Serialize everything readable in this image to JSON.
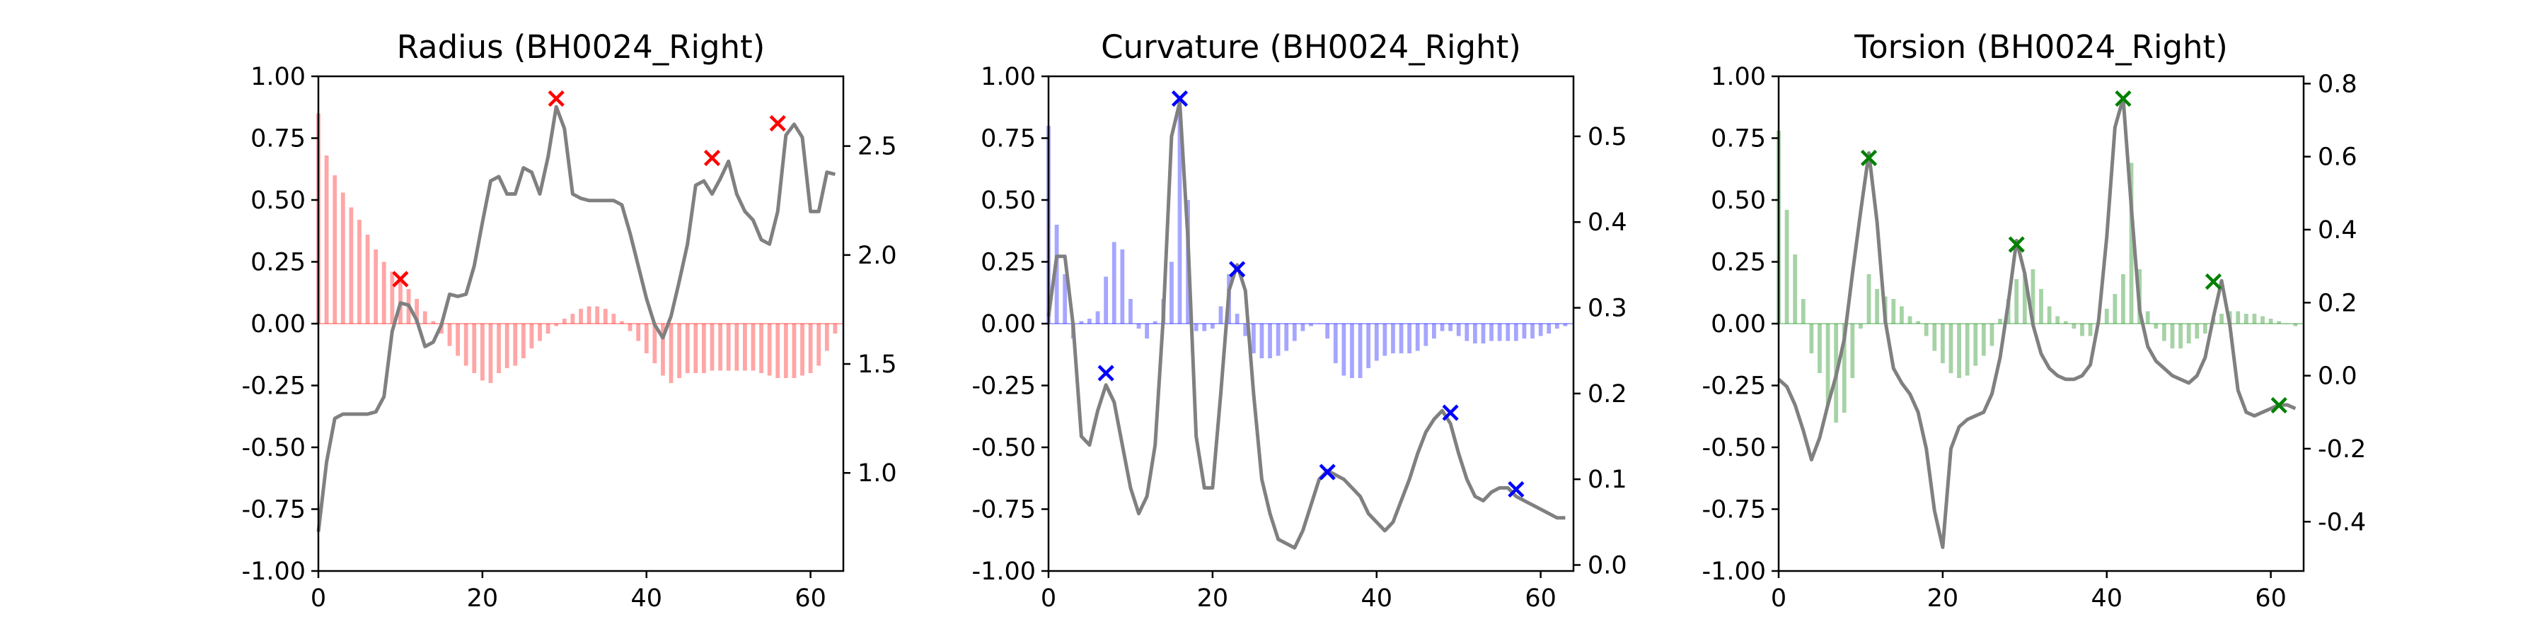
{
  "colors": {
    "radius": "#ff0000",
    "curvature": "#0000ff",
    "torsion": "#008000",
    "line": "#808080",
    "text": "#000000"
  },
  "chart_data": [
    {
      "type": "bar+line",
      "title": "Radius (BH0024_Right)",
      "color": "#ff0000",
      "x_ticks": [
        0,
        20,
        40,
        60
      ],
      "xlim": [
        0,
        64
      ],
      "left_ylim": [
        -1,
        1
      ],
      "left_ticks": [
        "-1.00",
        "-0.75",
        "-0.50",
        "-0.25",
        "0.00",
        "0.25",
        "0.50",
        "0.75",
        "1.00"
      ],
      "right_ylim": [
        0.55,
        2.82
      ],
      "right_ticks": [
        "1.0",
        "1.5",
        "2.0",
        "2.5"
      ],
      "bars": [
        0.85,
        0.68,
        0.6,
        0.53,
        0.47,
        0.42,
        0.36,
        0.3,
        0.25,
        0.21,
        0.18,
        0.14,
        0.1,
        0.05,
        0.01,
        -0.04,
        -0.09,
        -0.13,
        -0.17,
        -0.2,
        -0.23,
        -0.24,
        -0.2,
        -0.18,
        -0.17,
        -0.14,
        -0.1,
        -0.07,
        -0.04,
        -0.01,
        0.02,
        0.04,
        0.06,
        0.07,
        0.07,
        0.06,
        0.04,
        0.01,
        -0.03,
        -0.07,
        -0.12,
        -0.16,
        -0.21,
        -0.24,
        -0.22,
        -0.2,
        -0.2,
        -0.2,
        -0.19,
        -0.19,
        -0.19,
        -0.19,
        -0.19,
        -0.19,
        -0.2,
        -0.21,
        -0.22,
        -0.22,
        -0.22,
        -0.21,
        -0.2,
        -0.17,
        -0.11,
        -0.04
      ],
      "line": [
        0.73,
        1.05,
        1.25,
        1.27,
        1.27,
        1.27,
        1.27,
        1.28,
        1.35,
        1.65,
        1.78,
        1.77,
        1.7,
        1.58,
        1.6,
        1.68,
        1.82,
        1.81,
        1.82,
        1.95,
        2.15,
        2.34,
        2.36,
        2.28,
        2.28,
        2.4,
        2.38,
        2.28,
        2.45,
        2.68,
        2.58,
        2.28,
        2.26,
        2.25,
        2.25,
        2.25,
        2.25,
        2.23,
        2.1,
        1.95,
        1.8,
        1.68,
        1.62,
        1.72,
        1.88,
        2.05,
        2.32,
        2.34,
        2.28,
        2.35,
        2.43,
        2.28,
        2.2,
        2.16,
        2.07,
        2.05,
        2.2,
        2.55,
        2.6,
        2.54,
        2.2,
        2.2,
        2.38,
        2.37
      ],
      "markers": [
        {
          "x": 10,
          "y": 0.18
        },
        {
          "x": 29,
          "y": 0.91
        },
        {
          "x": 48,
          "y": 0.67
        },
        {
          "x": 56,
          "y": 0.81
        }
      ]
    },
    {
      "type": "bar+line",
      "title": "Curvature (BH0024_Right)",
      "color": "#0000ff",
      "x_ticks": [
        0,
        20,
        40,
        60
      ],
      "xlim": [
        0,
        64
      ],
      "left_ylim": [
        -1,
        1
      ],
      "left_ticks": [
        "-1.00",
        "-0.75",
        "-0.50",
        "-0.25",
        "0.00",
        "0.25",
        "0.50",
        "0.75",
        "1.00"
      ],
      "right_ylim": [
        -0.007,
        0.57
      ],
      "right_ticks": [
        "0.0",
        "0.1",
        "0.2",
        "0.3",
        "0.4",
        "0.5"
      ],
      "bars": [
        0.8,
        0.4,
        0.2,
        -0.06,
        0.01,
        0.02,
        0.05,
        0.19,
        0.33,
        0.3,
        0.1,
        -0.02,
        -0.06,
        0.01,
        0.1,
        0.25,
        0.85,
        0.5,
        -0.03,
        -0.03,
        -0.02,
        0.07,
        0.2,
        0.04,
        -0.05,
        -0.12,
        -0.14,
        -0.14,
        -0.13,
        -0.11,
        -0.07,
        -0.03,
        -0.01,
        0.0,
        -0.06,
        -0.16,
        -0.21,
        -0.22,
        -0.22,
        -0.18,
        -0.15,
        -0.13,
        -0.12,
        -0.12,
        -0.12,
        -0.11,
        -0.09,
        -0.06,
        -0.03,
        -0.03,
        -0.05,
        -0.07,
        -0.08,
        -0.08,
        -0.07,
        -0.07,
        -0.07,
        -0.07,
        -0.06,
        -0.06,
        -0.05,
        -0.04,
        -0.02,
        -0.01
      ],
      "line": [
        0.29,
        0.36,
        0.36,
        0.28,
        0.15,
        0.14,
        0.18,
        0.21,
        0.19,
        0.14,
        0.09,
        0.06,
        0.08,
        0.14,
        0.29,
        0.5,
        0.54,
        0.38,
        0.15,
        0.09,
        0.09,
        0.2,
        0.32,
        0.35,
        0.32,
        0.2,
        0.1,
        0.06,
        0.03,
        0.025,
        0.02,
        0.04,
        0.07,
        0.1,
        0.11,
        0.105,
        0.1,
        0.09,
        0.08,
        0.06,
        0.05,
        0.04,
        0.05,
        0.075,
        0.1,
        0.13,
        0.155,
        0.17,
        0.18,
        0.165,
        0.13,
        0.1,
        0.08,
        0.075,
        0.085,
        0.09,
        0.09,
        0.08,
        0.075,
        0.07,
        0.065,
        0.06,
        0.055,
        0.055
      ],
      "markers": [
        {
          "x": 7,
          "y": -0.2
        },
        {
          "x": 16,
          "y": 0.91
        },
        {
          "x": 23,
          "y": 0.22
        },
        {
          "x": 34,
          "y": -0.6
        },
        {
          "x": 49,
          "y": -0.36
        },
        {
          "x": 57,
          "y": -0.67
        }
      ]
    },
    {
      "type": "bar+line",
      "title": "Torsion (BH0024_Right)",
      "color": "#008000",
      "x_ticks": [
        0,
        20,
        40,
        60
      ],
      "xlim": [
        0,
        64
      ],
      "left_ylim": [
        -1,
        1
      ],
      "left_ticks": [
        "-1.00",
        "-0.75",
        "-0.50",
        "-0.25",
        "0.00",
        "0.25",
        "0.50",
        "0.75",
        "1.00"
      ],
      "right_ylim": [
        -0.535,
        0.82
      ],
      "right_ticks": [
        "-0.4",
        "-0.2",
        "0.0",
        "0.2",
        "0.4",
        "0.6",
        "0.8"
      ],
      "bars": [
        0.78,
        0.46,
        0.28,
        0.1,
        -0.12,
        -0.2,
        -0.33,
        -0.4,
        -0.36,
        -0.22,
        -0.02,
        0.2,
        0.14,
        0.11,
        0.1,
        0.07,
        0.03,
        0.01,
        -0.05,
        -0.11,
        -0.16,
        -0.2,
        -0.22,
        -0.21,
        -0.17,
        -0.13,
        -0.09,
        0.02,
        0.1,
        0.18,
        0.2,
        0.22,
        0.14,
        0.07,
        0.03,
        0.01,
        -0.02,
        -0.05,
        -0.05,
        0.0,
        0.06,
        0.12,
        0.2,
        0.65,
        0.22,
        0.05,
        -0.02,
        -0.07,
        -0.1,
        -0.1,
        -0.08,
        -0.06,
        -0.04,
        0.02,
        0.04,
        0.05,
        0.05,
        0.04,
        0.04,
        0.03,
        0.02,
        0.01,
        0.0,
        -0.01
      ],
      "line": [
        -0.01,
        -0.03,
        -0.08,
        -0.15,
        -0.23,
        -0.17,
        -0.08,
        0.0,
        0.1,
        0.28,
        0.45,
        0.61,
        0.42,
        0.15,
        0.02,
        -0.02,
        -0.05,
        -0.1,
        -0.2,
        -0.37,
        -0.47,
        -0.2,
        -0.14,
        -0.12,
        -0.11,
        -0.1,
        -0.05,
        0.05,
        0.2,
        0.37,
        0.28,
        0.14,
        0.06,
        0.02,
        0.0,
        -0.01,
        -0.01,
        0.0,
        0.03,
        0.15,
        0.38,
        0.68,
        0.76,
        0.46,
        0.18,
        0.08,
        0.04,
        0.02,
        0.0,
        -0.01,
        -0.02,
        0.0,
        0.05,
        0.16,
        0.26,
        0.14,
        -0.04,
        -0.1,
        -0.11,
        -0.1,
        -0.09,
        -0.08,
        -0.08,
        -0.09
      ],
      "markers": [
        {
          "x": 11,
          "y": 0.67
        },
        {
          "x": 29,
          "y": 0.32
        },
        {
          "x": 42,
          "y": 0.91
        },
        {
          "x": 53,
          "y": 0.17
        },
        {
          "x": 61,
          "y": -0.33
        }
      ]
    }
  ]
}
